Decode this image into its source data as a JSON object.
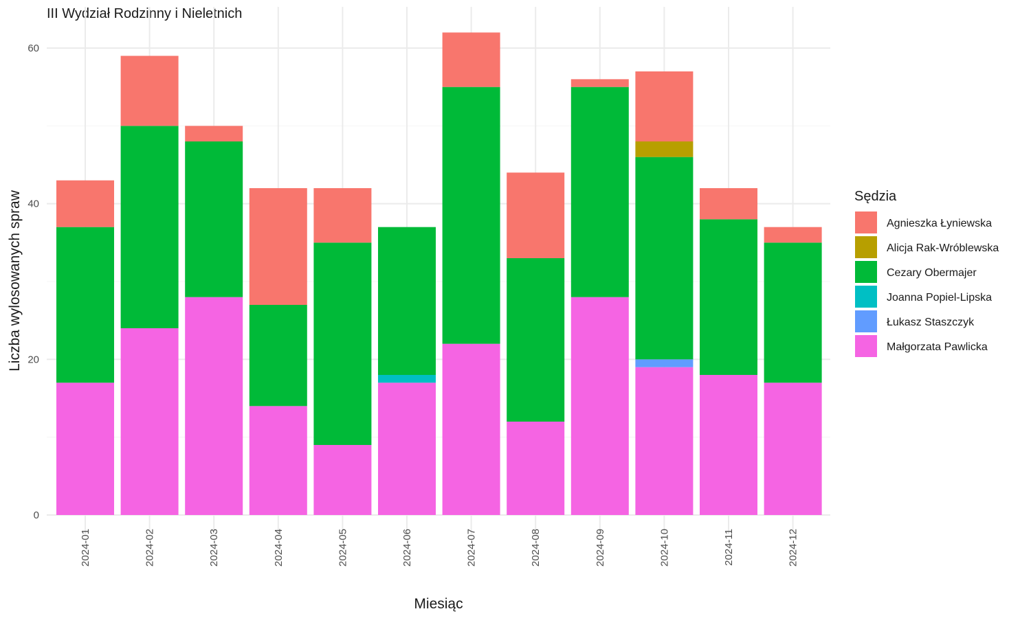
{
  "chart_data": {
    "type": "bar",
    "stacked": true,
    "title": "III Wydział Rodzinny i Nieletnich",
    "xlabel": "Miesiąc",
    "ylabel": "Liczba wylosowanych spraw",
    "ylim": [
      0,
      63
    ],
    "yticks": [
      0,
      20,
      40,
      60
    ],
    "categories": [
      "2024-01",
      "2024-02",
      "2024-03",
      "2024-04",
      "2024-05",
      "2024-06",
      "2024-07",
      "2024-08",
      "2024-09",
      "2024-10",
      "2024-11",
      "2024-12"
    ],
    "legend": {
      "title": "Sędzia",
      "position": "right"
    },
    "grid": true,
    "series": [
      {
        "name": "Agnieszka Łyniewska",
        "color": "#F8766D",
        "values": [
          6,
          9,
          2,
          15,
          7,
          0,
          7,
          11,
          1,
          9,
          4,
          2
        ]
      },
      {
        "name": "Alicja Rak-Wróblewska",
        "color": "#B79F00",
        "values": [
          0,
          0,
          0,
          0,
          0,
          0,
          0,
          0,
          0,
          2,
          0,
          0
        ]
      },
      {
        "name": "Cezary Obermajer",
        "color": "#00BA38",
        "values": [
          20,
          26,
          20,
          13,
          26,
          19,
          33,
          21,
          27,
          26,
          20,
          18
        ]
      },
      {
        "name": "Joanna Popiel-Lipska",
        "color": "#00BFC4",
        "values": [
          0,
          0,
          0,
          0,
          0,
          1,
          0,
          0,
          0,
          0,
          0,
          0
        ]
      },
      {
        "name": "Łukasz Staszczyk",
        "color": "#619CFF",
        "values": [
          0,
          0,
          0,
          0,
          0,
          0,
          0,
          0,
          0,
          1,
          0,
          0
        ]
      },
      {
        "name": "Małgorzata Pawlicka",
        "color": "#F564E3",
        "values": [
          17,
          24,
          28,
          14,
          9,
          17,
          22,
          12,
          28,
          19,
          18,
          17
        ]
      }
    ]
  }
}
